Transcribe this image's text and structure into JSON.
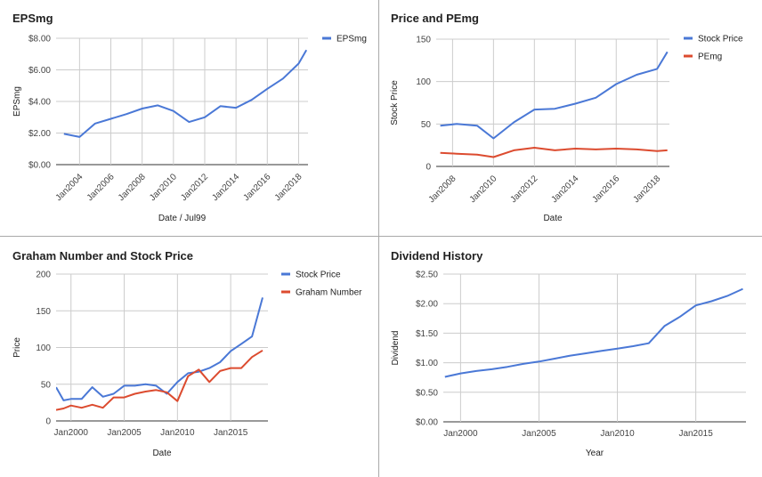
{
  "colors": {
    "blue": "#4a78d6",
    "red": "#dc4b2f",
    "grid": "#cccccc",
    "baseline": "#333333"
  },
  "chart_data": [
    {
      "type": "line",
      "title": "EPSmg",
      "xlabel": "Date / Jul99",
      "ylabel": "EPSmg",
      "xlim": [
        2002.5,
        2018.6
      ],
      "ylim": [
        0,
        8
      ],
      "yticks": [
        0,
        2,
        4,
        6,
        8
      ],
      "ytick_labels": [
        "$0.00",
        "$2.00",
        "$4.00",
        "$6.00",
        "$8.00"
      ],
      "xticks": [
        2004,
        2006,
        2008,
        2010,
        2012,
        2014,
        2016,
        2018
      ],
      "xtick_labels": [
        "Jan2004",
        "Jan2006",
        "Jan2008",
        "Jan2010",
        "Jan2012",
        "Jan2014",
        "Jan2016",
        "Jan2018"
      ],
      "xtick_rotated": true,
      "legend": "right",
      "series": [
        {
          "name": "EPSmg",
          "color": "#4a78d6",
          "x": [
            2003,
            2004,
            2005,
            2006,
            2007,
            2008,
            2009,
            2010,
            2011,
            2012,
            2013,
            2014,
            2015,
            2016,
            2017,
            2018,
            2018.5
          ],
          "y": [
            1.95,
            1.75,
            2.6,
            2.9,
            3.2,
            3.55,
            3.75,
            3.4,
            2.7,
            3.0,
            3.7,
            3.6,
            4.1,
            4.8,
            5.45,
            6.4,
            7.25
          ]
        }
      ]
    },
    {
      "type": "line",
      "title": "Price and PEmg",
      "xlabel": "Date",
      "ylabel": "Stock Price",
      "xlim": [
        2007.2,
        2018.6
      ],
      "ylim": [
        0,
        150
      ],
      "yticks": [
        0,
        50,
        100,
        150
      ],
      "ytick_labels": [
        "0",
        "50",
        "100",
        "150"
      ],
      "xticks": [
        2008,
        2010,
        2012,
        2014,
        2016,
        2018
      ],
      "xtick_labels": [
        "Jan2008",
        "Jan2010",
        "Jan2012",
        "Jan2014",
        "Jan2016",
        "Jan2018"
      ],
      "xtick_rotated": true,
      "legend": "right",
      "series": [
        {
          "name": "Stock Price",
          "color": "#4a78d6",
          "x": [
            2007.4,
            2008.2,
            2009.2,
            2010,
            2011,
            2012,
            2013,
            2014,
            2015,
            2016,
            2017,
            2018,
            2018.5
          ],
          "y": [
            48,
            50,
            48,
            33,
            52,
            67,
            68,
            74,
            81,
            97,
            108,
            115,
            135
          ]
        },
        {
          "name": "PEmg",
          "color": "#dc4b2f",
          "x": [
            2007.4,
            2008.2,
            2009.2,
            2010,
            2011,
            2012,
            2013,
            2014,
            2015,
            2016,
            2017,
            2018,
            2018.5
          ],
          "y": [
            16,
            15,
            14,
            11,
            19,
            22,
            19,
            21,
            20,
            21,
            20,
            18,
            19
          ]
        }
      ]
    },
    {
      "type": "line",
      "title": "Graham Number and Stock Price",
      "xlabel": "Date",
      "ylabel": "Price",
      "xlim": [
        1998.6,
        2018.5
      ],
      "ylim": [
        0,
        200
      ],
      "yticks": [
        0,
        50,
        100,
        150,
        200
      ],
      "ytick_labels": [
        "0",
        "50",
        "100",
        "150",
        "200"
      ],
      "xticks": [
        2000,
        2005,
        2010,
        2015
      ],
      "xtick_labels": [
        "Jan2000",
        "Jan2005",
        "Jan2010",
        "Jan2015"
      ],
      "xtick_rotated": false,
      "legend": "right",
      "series": [
        {
          "name": "Stock Price",
          "color": "#4a78d6",
          "x": [
            1998.6,
            1999.3,
            2000,
            2001,
            2002,
            2003,
            2004,
            2005,
            2006,
            2007,
            2008,
            2009,
            2010,
            2011,
            2012,
            2013,
            2014,
            2015,
            2016,
            2017,
            2018
          ],
          "y": [
            46,
            28,
            30,
            30,
            46,
            33,
            37,
            48,
            48,
            50,
            48,
            37,
            53,
            65,
            67,
            72,
            80,
            95,
            105,
            115,
            168
          ]
        },
        {
          "name": "Graham Number",
          "color": "#dc4b2f",
          "x": [
            1998.6,
            1999.3,
            2000,
            2001,
            2002,
            2003,
            2004,
            2005,
            2006,
            2007,
            2008,
            2009,
            2010,
            2011,
            2012,
            2013,
            2014,
            2015,
            2016,
            2017,
            2018
          ],
          "y": [
            15,
            17,
            21,
            18,
            22,
            18,
            32,
            32,
            37,
            40,
            42,
            39,
            27,
            61,
            70,
            53,
            68,
            72,
            72,
            87,
            96
          ]
        }
      ]
    },
    {
      "type": "line",
      "title": "Dividend History",
      "xlabel": "Year",
      "ylabel": "Dividend",
      "xlim": [
        1998.9,
        2018.2
      ],
      "ylim": [
        0,
        2.5
      ],
      "yticks": [
        0,
        0.5,
        1,
        1.5,
        2,
        2.5
      ],
      "ytick_labels": [
        "$0.00",
        "$0.50",
        "$1.00",
        "$1.50",
        "$2.00",
        "$2.50"
      ],
      "xticks": [
        2000,
        2005,
        2010,
        2015
      ],
      "xtick_labels": [
        "Jan2000",
        "Jan2005",
        "Jan2010",
        "Jan2015"
      ],
      "xtick_rotated": false,
      "legend": "none",
      "series": [
        {
          "name": "",
          "color": "#4a78d6",
          "x": [
            1999,
            2000,
            2001,
            2002,
            2003,
            2004,
            2005,
            2006,
            2007,
            2008,
            2009,
            2010,
            2011,
            2012,
            2013,
            2014,
            2015,
            2016,
            2017,
            2018
          ],
          "y": [
            0.76,
            0.82,
            0.86,
            0.89,
            0.93,
            0.98,
            1.02,
            1.07,
            1.12,
            1.16,
            1.2,
            1.24,
            1.28,
            1.33,
            1.62,
            1.78,
            1.97,
            2.04,
            2.13,
            2.25
          ]
        }
      ]
    }
  ]
}
